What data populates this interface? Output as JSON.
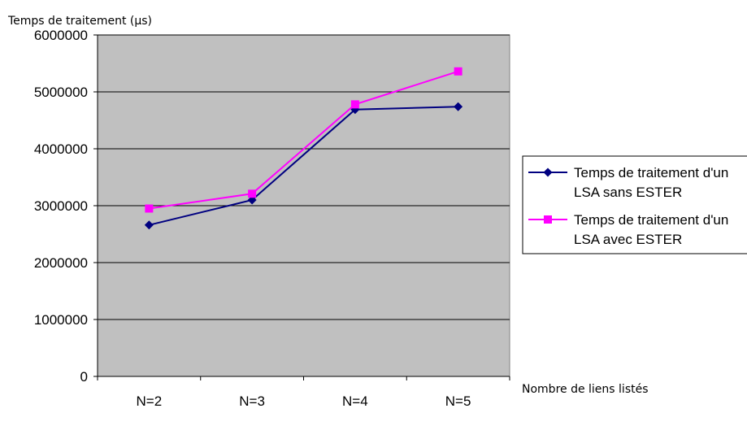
{
  "chart_data": {
    "type": "line",
    "title": "",
    "ylabel": "Temps de traitement (µs)",
    "xlabel": "Nombre de liens listés",
    "categories": [
      "N=2",
      "N=3",
      "N=4",
      "N=5"
    ],
    "ylim": [
      0,
      6000000
    ],
    "yticks": [
      0,
      1000000,
      2000000,
      3000000,
      4000000,
      5000000,
      6000000
    ],
    "ytick_labels": [
      "0",
      "1000000",
      "2000000",
      "3000000",
      "4000000",
      "5000000",
      "6000000"
    ],
    "grid": true,
    "legend_position": "right",
    "series": [
      {
        "name_lines": [
          "Temps de traitement d'un",
          "LSA sans ESTER"
        ],
        "values": [
          2660000,
          3100000,
          4690000,
          4740000
        ],
        "color": "#000080",
        "marker": "diamond"
      },
      {
        "name_lines": [
          "Temps de traitement d'un",
          "LSA avec ESTER"
        ],
        "values": [
          2950000,
          3210000,
          4780000,
          5360000
        ],
        "color": "#ff00ff",
        "marker": "square"
      }
    ]
  },
  "colors": {
    "plot_background": "#c0c0c0",
    "grid": "#000000"
  }
}
